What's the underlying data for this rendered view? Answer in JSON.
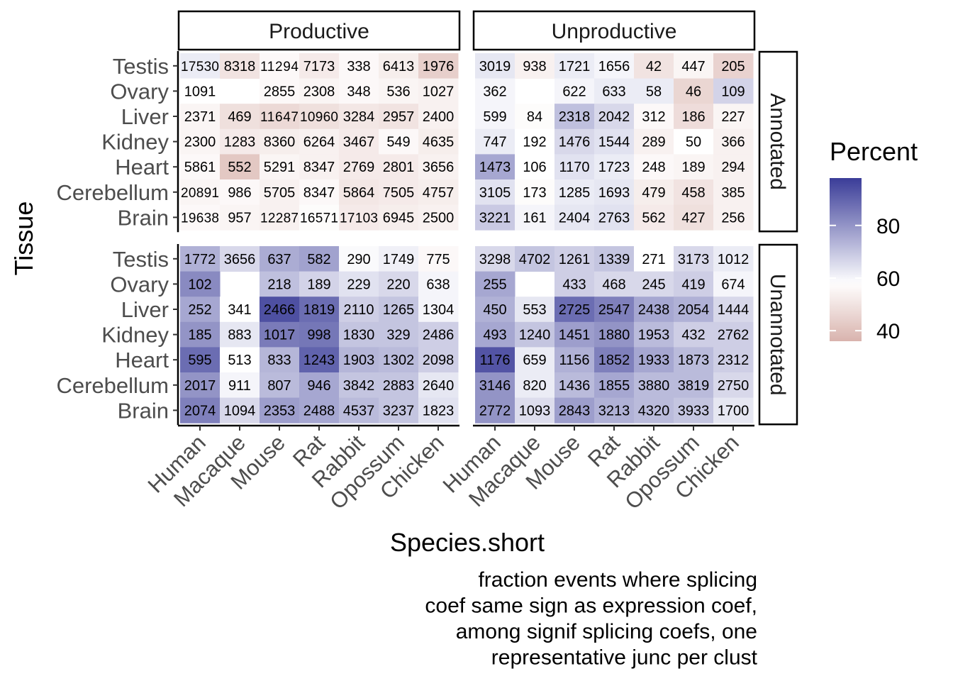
{
  "chart_data": {
    "type": "heatmap",
    "xlabel": "Species.short",
    "ylabel": "Tissue",
    "caption_lines": [
      "fraction events where splicing",
      "coef same sign as expression coef,",
      "among signif splicing coefs, one",
      "representative junc per clust"
    ],
    "column_facets": [
      "Productive",
      "Unproductive"
    ],
    "row_facets": [
      "Annotated",
      "Unannotated"
    ],
    "species": [
      "Human",
      "Macaque",
      "Mouse",
      "Rat",
      "Rabbit",
      "Opossum",
      "Chicken"
    ],
    "tissues": [
      "Testis",
      "Ovary",
      "Liver",
      "Kidney",
      "Heart",
      "Cerebellum",
      "Brain"
    ],
    "legend": {
      "title": "Percent",
      "ticks": [
        40,
        60,
        80
      ],
      "range": [
        36,
        98
      ],
      "mid": 58,
      "colors": {
        "low": "#d9b3ad",
        "mid": "#ffffff",
        "high": "#3a3c98"
      }
    },
    "panels": [
      {
        "col": "Productive",
        "row": "Annotated",
        "counts": [
          [
            "17530",
            "8318",
            "11294",
            "7173",
            "338",
            "6413",
            "1976"
          ],
          [
            "1091",
            null,
            "2855",
            "2308",
            "348",
            "536",
            "1027"
          ],
          [
            "2371",
            "469",
            "11647",
            "10960",
            "3284",
            "2957",
            "2400"
          ],
          [
            "2300",
            "1283",
            "8360",
            "6264",
            "3467",
            "549",
            "4635"
          ],
          [
            "5861",
            "552",
            "5291",
            "8347",
            "2769",
            "2801",
            "3656"
          ],
          [
            "20891",
            "986",
            "5705",
            "8347",
            "5864",
            "7505",
            "4757"
          ],
          [
            "19638",
            "957",
            "12287",
            "16571",
            "17103",
            "6945",
            "2500"
          ]
        ],
        "percent": [
          [
            62,
            50,
            56,
            52,
            56,
            53,
            44
          ],
          [
            58,
            null,
            56,
            55,
            56,
            55,
            54
          ],
          [
            55,
            49,
            47,
            49,
            51,
            50,
            54
          ],
          [
            55,
            52,
            53,
            54,
            52,
            56,
            53
          ],
          [
            56,
            42,
            55,
            54,
            52,
            52,
            54
          ],
          [
            55,
            56,
            54,
            56,
            51,
            52,
            53
          ],
          [
            56,
            55,
            54,
            57,
            52,
            53,
            54
          ]
        ]
      },
      {
        "col": "Unproductive",
        "row": "Annotated",
        "counts": [
          [
            "3019",
            "938",
            "1721",
            "1656",
            "42",
            "447",
            "205"
          ],
          [
            "362",
            null,
            "622",
            "633",
            "58",
            "46",
            "109"
          ],
          [
            "599",
            "84",
            "2318",
            "2042",
            "312",
            "186",
            "227"
          ],
          [
            "747",
            "192",
            "1476",
            "1544",
            "289",
            "50",
            "366"
          ],
          [
            "1473",
            "106",
            "1170",
            "1723",
            "248",
            "189",
            "294"
          ],
          [
            "3105",
            "173",
            "1285",
            "1693",
            "479",
            "458",
            "385"
          ],
          [
            "3221",
            "161",
            "2404",
            "2763",
            "562",
            "427",
            "256"
          ]
        ],
        "percent": [
          [
            63,
            54,
            62,
            60,
            50,
            55,
            45
          ],
          [
            60,
            null,
            60,
            62,
            62,
            46,
            67
          ],
          [
            60,
            57,
            71,
            66,
            56,
            48,
            55
          ],
          [
            62,
            58,
            66,
            64,
            54,
            58,
            54
          ],
          [
            76,
            58,
            64,
            62,
            56,
            55,
            54
          ],
          [
            64,
            57,
            62,
            63,
            53,
            50,
            54
          ],
          [
            69,
            60,
            63,
            64,
            52,
            49,
            54
          ]
        ]
      },
      {
        "col": "Productive",
        "row": "Unannotated",
        "counts": [
          [
            "1772",
            "3656",
            "637",
            "582",
            "290",
            "1749",
            "775"
          ],
          [
            "102",
            null,
            "218",
            "189",
            "229",
            "220",
            "638"
          ],
          [
            "252",
            "341",
            "2466",
            "1819",
            "2110",
            "1265",
            "1304"
          ],
          [
            "185",
            "883",
            "1017",
            "998",
            "1830",
            "329",
            "2486"
          ],
          [
            "595",
            "513",
            "833",
            "1243",
            "1903",
            "1302",
            "2098"
          ],
          [
            "2017",
            "911",
            "807",
            "946",
            "3842",
            "2883",
            "2640"
          ],
          [
            "2074",
            "1094",
            "2353",
            "2488",
            "4537",
            "3237",
            "1823"
          ]
        ],
        "percent": [
          [
            74,
            66,
            75,
            77,
            59,
            61,
            56
          ],
          [
            82,
            null,
            71,
            67,
            64,
            66,
            60
          ],
          [
            76,
            58,
            94,
            88,
            68,
            70,
            60
          ],
          [
            80,
            63,
            85,
            86,
            70,
            70,
            68
          ],
          [
            88,
            58,
            73,
            90,
            73,
            72,
            68
          ],
          [
            80,
            60,
            72,
            76,
            70,
            70,
            63
          ],
          [
            84,
            66,
            78,
            76,
            72,
            70,
            64
          ]
        ]
      },
      {
        "col": "Unproductive",
        "row": "Unannotated",
        "counts": [
          [
            "3298",
            "4702",
            "1261",
            "1339",
            "271",
            "3173",
            "1012"
          ],
          [
            "255",
            null,
            "433",
            "468",
            "245",
            "419",
            "674"
          ],
          [
            "450",
            "553",
            "2725",
            "2547",
            "2438",
            "2054",
            "1444"
          ],
          [
            "493",
            "1240",
            "1451",
            "1880",
            "1953",
            "432",
            "2762"
          ],
          [
            "1176",
            "659",
            "1156",
            "1852",
            "1933",
            "1873",
            "2312"
          ],
          [
            "3146",
            "820",
            "1436",
            "1855",
            "3880",
            "3819",
            "2750"
          ],
          [
            "2772",
            "1093",
            "2843",
            "3213",
            "4320",
            "3933",
            "1700"
          ]
        ],
        "percent": [
          [
            66,
            70,
            68,
            70,
            58,
            66,
            62
          ],
          [
            76,
            null,
            68,
            66,
            66,
            68,
            60
          ],
          [
            74,
            63,
            88,
            84,
            76,
            74,
            66
          ],
          [
            76,
            70,
            78,
            80,
            72,
            68,
            68
          ],
          [
            93,
            62,
            74,
            84,
            76,
            72,
            68
          ],
          [
            80,
            62,
            72,
            76,
            72,
            72,
            66
          ],
          [
            80,
            65,
            78,
            74,
            72,
            70,
            63
          ]
        ]
      }
    ]
  }
}
